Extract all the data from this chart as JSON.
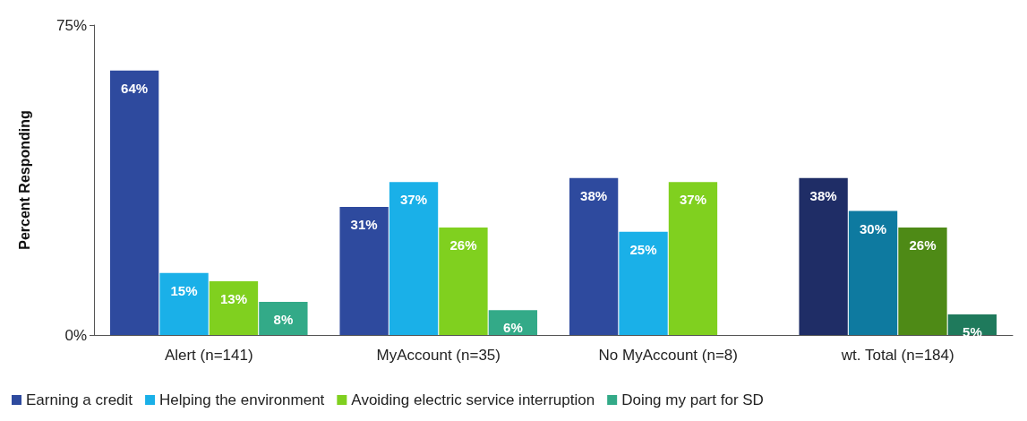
{
  "chart_data": {
    "type": "bar",
    "ylabel": "Percent Responding",
    "categories": [
      "Alert (n=141)",
      "MyAccount (n=35)",
      "No MyAccount (n=8)",
      "wt. Total (n=184)"
    ],
    "series": [
      {
        "name": "Earning a credit",
        "color": "#2e4a9e",
        "colors": [
          "#2e4a9e",
          "#2e4a9e",
          "#2e4a9e",
          "#1f2d66"
        ],
        "values": [
          64,
          31,
          38,
          38
        ],
        "value_labels": [
          "64%",
          "31%",
          "38%",
          "38%"
        ]
      },
      {
        "name": "Helping the environment",
        "color": "#1ab0e8",
        "colors": [
          "#1ab0e8",
          "#1ab0e8",
          "#1ab0e8",
          "#0e7aa0"
        ],
        "values": [
          15,
          37,
          25,
          30
        ],
        "value_labels": [
          "15%",
          "37%",
          "25%",
          "30%"
        ]
      },
      {
        "name": "Avoiding electric service interruption",
        "color": "#80d01f",
        "colors": [
          "#80d01f",
          "#80d01f",
          "#80d01f",
          "#4e8a16"
        ],
        "values": [
          13,
          26,
          37,
          26
        ],
        "value_labels": [
          "13%",
          "26%",
          "37%",
          "26%"
        ]
      },
      {
        "name": "Doing my part for SD",
        "color": "#33aa88",
        "colors": [
          "#33aa88",
          "#33aa88",
          null,
          "#1f7a5c"
        ],
        "values": [
          8,
          6,
          null,
          5
        ],
        "value_labels": [
          "8%",
          "6%",
          null,
          "5%"
        ]
      }
    ],
    "ylim": [
      0,
      75
    ],
    "yticks": [
      {
        "value": 0,
        "label": "0%"
      },
      {
        "value": 75,
        "label": "75%"
      }
    ],
    "grid": false,
    "legend": "bottom"
  }
}
